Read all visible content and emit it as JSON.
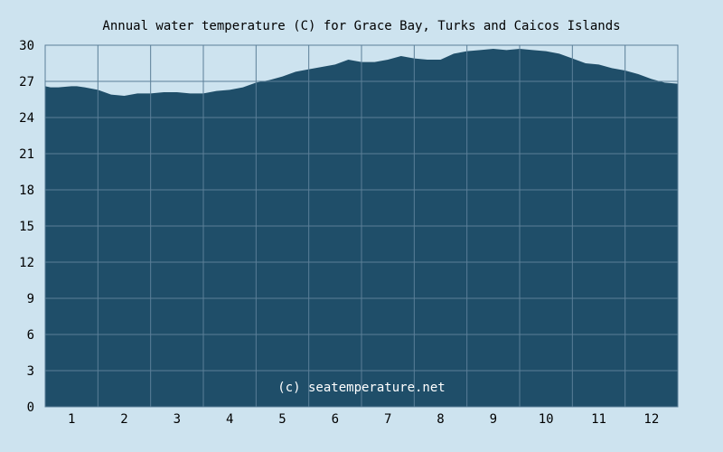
{
  "chart_data": {
    "type": "area",
    "title": "Annual water temperature (C) for Grace Bay, Turks and Caicos Islands",
    "watermark": "(c) seatemperature.net",
    "xlabel": "",
    "ylabel": "",
    "x_ticks": [
      "1",
      "2",
      "3",
      "4",
      "5",
      "6",
      "7",
      "8",
      "9",
      "10",
      "11",
      "12"
    ],
    "y_ticks": [
      "0",
      "3",
      "6",
      "9",
      "12",
      "15",
      "18",
      "21",
      "24",
      "27",
      "30"
    ],
    "ylim": [
      0,
      30
    ],
    "xlim": [
      0.5,
      12.5
    ],
    "grid": true,
    "colors": {
      "background": "#cde3ef",
      "plot_background": "#cde3ef",
      "area_fill": "#1f4e69",
      "grid": "#5b7f98",
      "watermark": "#ffffff"
    },
    "series": [
      {
        "x": [
          0.5,
          0.6,
          0.75,
          1.0,
          1.1,
          1.25,
          1.5,
          1.75,
          2.0,
          2.25,
          2.5,
          2.75,
          3.0,
          3.25,
          3.5,
          3.75,
          4.0,
          4.25,
          4.5,
          4.75,
          5.0,
          5.25,
          5.5,
          5.75,
          6.0,
          6.25,
          6.5,
          6.75,
          7.0,
          7.25,
          7.5,
          7.75,
          8.0,
          8.25,
          8.5,
          8.75,
          9.0,
          9.25,
          9.5,
          9.75,
          10.0,
          10.25,
          10.5,
          10.75,
          11.0,
          11.25,
          11.5,
          11.75,
          12.0,
          12.25,
          12.5
        ],
        "values": [
          26.6,
          26.5,
          26.5,
          26.6,
          26.6,
          26.5,
          26.3,
          25.9,
          25.8,
          26.0,
          26.0,
          26.1,
          26.1,
          26.0,
          26.0,
          26.2,
          26.3,
          26.5,
          26.9,
          27.1,
          27.4,
          27.8,
          28.0,
          28.2,
          28.4,
          28.8,
          28.6,
          28.6,
          28.8,
          29.1,
          28.9,
          28.8,
          28.8,
          29.3,
          29.5,
          29.6,
          29.7,
          29.6,
          29.7,
          29.6,
          29.5,
          29.3,
          28.9,
          28.5,
          28.4,
          28.1,
          27.9,
          27.6,
          27.2,
          26.9,
          26.8
        ]
      }
    ]
  }
}
